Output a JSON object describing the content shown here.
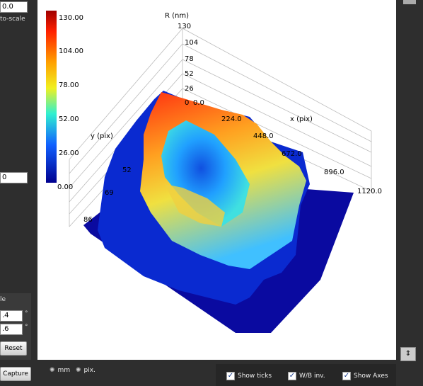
{
  "left_panel": {
    "top_value": "0.0",
    "autoscale_label": "to-scale",
    "mid_value": "0",
    "angle_label": "le",
    "angle1": ".4",
    "angle2": ".6",
    "degree1": "°",
    "degree2": "°",
    "reset": "Reset",
    "capture": "Capture"
  },
  "units": {
    "mm": "mm",
    "pix": "pix."
  },
  "colorbar": {
    "labels": [
      "130.00",
      "104.00",
      "78.00",
      "52.00",
      "26.00",
      "0.00"
    ]
  },
  "plot": {
    "z_label": "R (nm)",
    "z_ticks": [
      "130",
      "104",
      "78",
      "52",
      "26",
      "0"
    ],
    "x_label": "x (pix)",
    "x_ticks": [
      "0.0",
      "224.0",
      "448.0",
      "672.0",
      "896.0",
      "1120.0"
    ],
    "y_label": "y (pix)",
    "y_ticks": [
      "52",
      "69",
      "86"
    ]
  },
  "options": [
    "Show ticks",
    "W/B inv.",
    "Show Axes"
  ]
}
